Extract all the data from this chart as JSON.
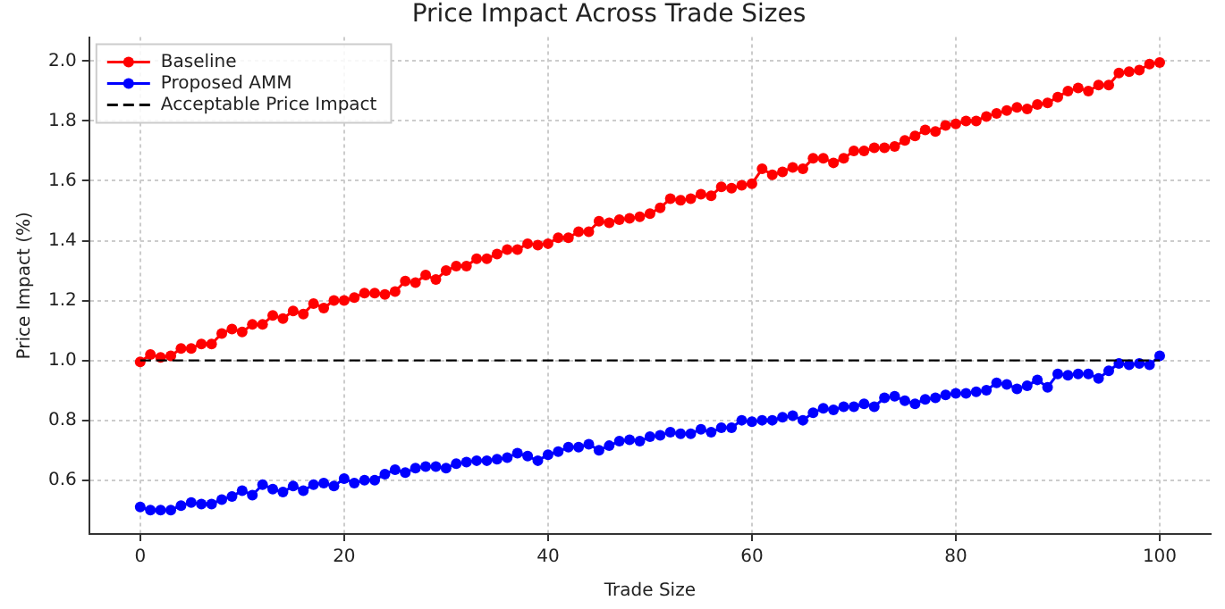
{
  "chart_data": {
    "type": "line",
    "title": "Price Impact Across Trade Sizes",
    "xlabel": "Trade Size",
    "ylabel": "Price Impact (%)",
    "x": [
      0,
      1,
      2,
      3,
      4,
      5,
      6,
      7,
      8,
      9,
      10,
      11,
      12,
      13,
      14,
      15,
      16,
      17,
      18,
      19,
      20,
      21,
      22,
      23,
      24,
      25,
      26,
      27,
      28,
      29,
      30,
      31,
      32,
      33,
      34,
      35,
      36,
      37,
      38,
      39,
      40,
      41,
      42,
      43,
      44,
      45,
      46,
      47,
      48,
      49,
      50,
      51,
      52,
      53,
      54,
      55,
      56,
      57,
      58,
      59,
      60,
      61,
      62,
      63,
      64,
      65,
      66,
      67,
      68,
      69,
      70,
      71,
      72,
      73,
      74,
      75,
      76,
      77,
      78,
      79,
      80,
      81,
      82,
      83,
      84,
      85,
      86,
      87,
      88,
      89,
      90,
      91,
      92,
      93,
      94,
      95,
      96,
      97,
      98,
      99,
      100
    ],
    "series": [
      {
        "name": "Baseline",
        "color": "#ff0000",
        "values": [
          0.995,
          1.02,
          1.01,
          1.015,
          1.04,
          1.04,
          1.055,
          1.055,
          1.09,
          1.105,
          1.095,
          1.12,
          1.12,
          1.15,
          1.14,
          1.165,
          1.155,
          1.19,
          1.175,
          1.2,
          1.2,
          1.21,
          1.225,
          1.225,
          1.22,
          1.23,
          1.265,
          1.26,
          1.285,
          1.27,
          1.3,
          1.315,
          1.315,
          1.34,
          1.34,
          1.355,
          1.37,
          1.37,
          1.39,
          1.385,
          1.39,
          1.41,
          1.41,
          1.43,
          1.43,
          1.465,
          1.46,
          1.47,
          1.475,
          1.48,
          1.49,
          1.51,
          1.54,
          1.535,
          1.54,
          1.555,
          1.55,
          1.58,
          1.575,
          1.585,
          1.59,
          1.64,
          1.62,
          1.63,
          1.645,
          1.64,
          1.675,
          1.675,
          1.66,
          1.675,
          1.7,
          1.7,
          1.71,
          1.71,
          1.715,
          1.735,
          1.75,
          1.77,
          1.765,
          1.785,
          1.79,
          1.8,
          1.8,
          1.815,
          1.825,
          1.835,
          1.845,
          1.84,
          1.855,
          1.86,
          1.88,
          1.9,
          1.91,
          1.9,
          1.92,
          1.92,
          1.96,
          1.965,
          1.97,
          1.99,
          1.995
        ]
      },
      {
        "name": "Proposed AMM",
        "color": "#0000ff",
        "values": [
          0.51,
          0.5,
          0.5,
          0.5,
          0.515,
          0.525,
          0.52,
          0.52,
          0.535,
          0.545,
          0.565,
          0.55,
          0.585,
          0.57,
          0.56,
          0.58,
          0.565,
          0.585,
          0.59,
          0.58,
          0.605,
          0.59,
          0.6,
          0.6,
          0.62,
          0.635,
          0.625,
          0.64,
          0.645,
          0.645,
          0.64,
          0.655,
          0.66,
          0.665,
          0.665,
          0.67,
          0.675,
          0.69,
          0.68,
          0.665,
          0.685,
          0.695,
          0.71,
          0.71,
          0.72,
          0.7,
          0.715,
          0.73,
          0.735,
          0.73,
          0.745,
          0.75,
          0.76,
          0.755,
          0.755,
          0.77,
          0.76,
          0.775,
          0.775,
          0.8,
          0.795,
          0.8,
          0.8,
          0.81,
          0.815,
          0.8,
          0.825,
          0.84,
          0.835,
          0.845,
          0.845,
          0.855,
          0.845,
          0.875,
          0.88,
          0.865,
          0.855,
          0.87,
          0.875,
          0.885,
          0.89,
          0.89,
          0.895,
          0.9,
          0.925,
          0.92,
          0.905,
          0.915,
          0.935,
          0.91,
          0.955,
          0.95,
          0.955,
          0.955,
          0.94,
          0.965,
          0.99,
          0.985,
          0.99,
          0.985,
          1.015
        ]
      }
    ],
    "ref_lines": [
      {
        "axis": "y",
        "value": 1.0,
        "label": "Acceptable Price Impact",
        "color": "#000000",
        "line_style": "dashed"
      }
    ],
    "xlim": [
      -5,
      105
    ],
    "xticks": [
      0,
      20,
      40,
      60,
      80,
      100
    ],
    "ylim": [
      0.42,
      2.08
    ],
    "yticks": [
      0.6,
      0.8,
      {
        "value": 1.0,
        "label": "1.0"
      },
      1.2,
      1.4,
      1.6,
      1.8,
      {
        "value": 2.0,
        "label": "2.0"
      }
    ],
    "grid": true,
    "legend": "top left",
    "marker": "circle",
    "line_style": "solid"
  }
}
